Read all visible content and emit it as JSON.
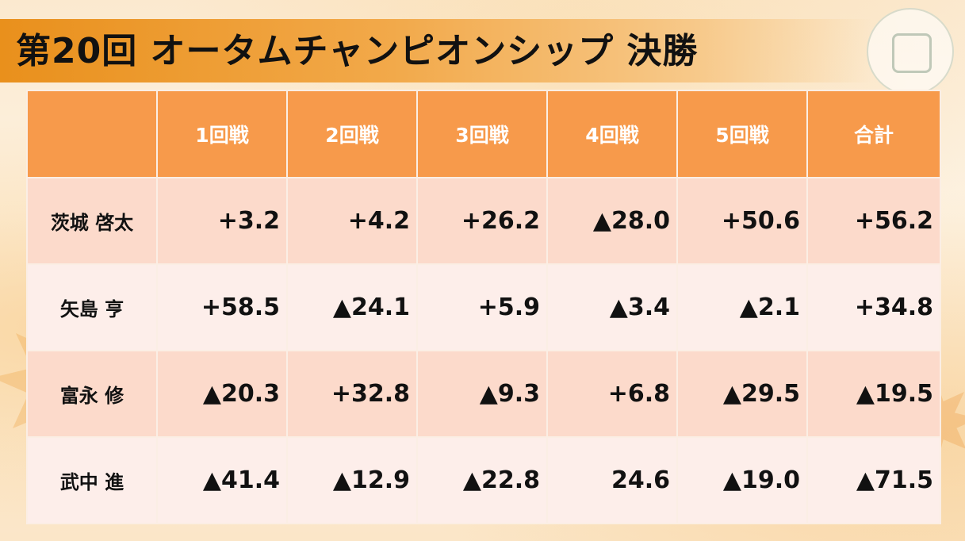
{
  "title": "第20回 オータムチャンピオンシップ 決勝",
  "table": {
    "headers": [
      "",
      "1回戦",
      "2回戦",
      "3回戦",
      "4回戦",
      "5回戦",
      "合計"
    ],
    "rows": [
      {
        "name": "茨城 啓太",
        "scores": [
          "+3.2",
          "+4.2",
          "+26.2",
          "▲28.0",
          "+50.6",
          "+56.2"
        ]
      },
      {
        "name": "矢島 亨",
        "scores": [
          "+58.5",
          "▲24.1",
          "+5.9",
          "▲3.4",
          "▲2.1",
          "+34.8"
        ]
      },
      {
        "name": "富永 修",
        "scores": [
          "▲20.3",
          "+32.8",
          "▲9.3",
          "+6.8",
          "▲29.5",
          "▲19.5"
        ]
      },
      {
        "name": "武中 進",
        "scores": [
          "▲41.4",
          "▲12.9",
          "▲22.8",
          "24.6",
          "▲19.0",
          "▲71.5"
        ]
      }
    ]
  },
  "colors": {
    "header_bg": "#f79a4b",
    "row_odd": "#fcdacb",
    "row_even": "#fdeeea",
    "title_bar": "#e9901c"
  },
  "icons": {
    "logo": "association-logo-icon",
    "decoration": "maple-leaf-icon"
  }
}
